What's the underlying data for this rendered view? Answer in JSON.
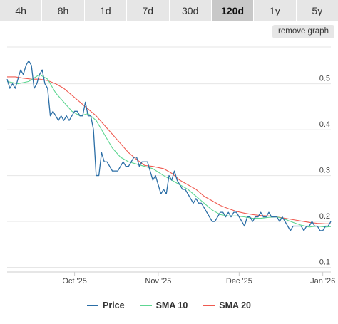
{
  "tabs": [
    {
      "label": "4h",
      "active": false
    },
    {
      "label": "8h",
      "active": false
    },
    {
      "label": "1d",
      "active": false
    },
    {
      "label": "7d",
      "active": false
    },
    {
      "label": "30d",
      "active": false
    },
    {
      "label": "120d",
      "active": true
    },
    {
      "label": "1y",
      "active": false
    },
    {
      "label": "5y",
      "active": false
    }
  ],
  "remove_graph_label": "remove graph",
  "colors": {
    "price": "#2b6ea6",
    "sma10": "#5ed692",
    "sma20": "#ef5a50"
  },
  "chart_data": {
    "type": "line",
    "x_domain": [
      "2025-09-06",
      "2026-01-04"
    ],
    "ylim": [
      0.09,
      0.58
    ],
    "y_ticks": [
      {
        "value": 0.1,
        "label": "0.1"
      },
      {
        "value": 0.2,
        "label": "0.2"
      },
      {
        "value": 0.3,
        "label": "0.3"
      },
      {
        "value": 0.4,
        "label": "0.4"
      },
      {
        "value": 0.5,
        "label": "0.5"
      }
    ],
    "x_ticks": [
      {
        "date": "2025-10-01",
        "label": "Oct '25"
      },
      {
        "date": "2025-11-01",
        "label": "Nov '25"
      },
      {
        "date": "2025-12-01",
        "label": "Dec '25"
      },
      {
        "date": "2026-01-01",
        "label": "Jan '26"
      }
    ],
    "grid": true,
    "legend": "bottom",
    "series": [
      {
        "name": "Price",
        "points": [
          [
            "2025-09-06",
            0.51
          ],
          [
            "2025-09-07",
            0.49
          ],
          [
            "2025-09-08",
            0.5
          ],
          [
            "2025-09-09",
            0.49
          ],
          [
            "2025-09-10",
            0.51
          ],
          [
            "2025-09-11",
            0.53
          ],
          [
            "2025-09-12",
            0.52
          ],
          [
            "2025-09-13",
            0.54
          ],
          [
            "2025-09-14",
            0.55
          ],
          [
            "2025-09-15",
            0.54
          ],
          [
            "2025-09-16",
            0.49
          ],
          [
            "2025-09-17",
            0.5
          ],
          [
            "2025-09-18",
            0.52
          ],
          [
            "2025-09-19",
            0.53
          ],
          [
            "2025-09-20",
            0.5
          ],
          [
            "2025-09-21",
            0.49
          ],
          [
            "2025-09-22",
            0.43
          ],
          [
            "2025-09-23",
            0.44
          ],
          [
            "2025-09-24",
            0.43
          ],
          [
            "2025-09-25",
            0.42
          ],
          [
            "2025-09-26",
            0.43
          ],
          [
            "2025-09-27",
            0.42
          ],
          [
            "2025-09-28",
            0.43
          ],
          [
            "2025-09-29",
            0.42
          ],
          [
            "2025-09-30",
            0.43
          ],
          [
            "2025-10-01",
            0.44
          ],
          [
            "2025-10-02",
            0.44
          ],
          [
            "2025-10-03",
            0.43
          ],
          [
            "2025-10-04",
            0.43
          ],
          [
            "2025-10-05",
            0.46
          ],
          [
            "2025-10-06",
            0.43
          ],
          [
            "2025-10-07",
            0.43
          ],
          [
            "2025-10-08",
            0.4
          ],
          [
            "2025-10-09",
            0.3
          ],
          [
            "2025-10-10",
            0.3
          ],
          [
            "2025-10-11",
            0.35
          ],
          [
            "2025-10-12",
            0.33
          ],
          [
            "2025-10-13",
            0.33
          ],
          [
            "2025-10-14",
            0.32
          ],
          [
            "2025-10-15",
            0.31
          ],
          [
            "2025-10-16",
            0.31
          ],
          [
            "2025-10-17",
            0.31
          ],
          [
            "2025-10-18",
            0.32
          ],
          [
            "2025-10-19",
            0.33
          ],
          [
            "2025-10-20",
            0.32
          ],
          [
            "2025-10-21",
            0.32
          ],
          [
            "2025-10-22",
            0.33
          ],
          [
            "2025-10-23",
            0.34
          ],
          [
            "2025-10-24",
            0.34
          ],
          [
            "2025-10-25",
            0.32
          ],
          [
            "2025-10-26",
            0.33
          ],
          [
            "2025-10-27",
            0.33
          ],
          [
            "2025-10-28",
            0.33
          ],
          [
            "2025-10-29",
            0.31
          ],
          [
            "2025-10-30",
            0.29
          ],
          [
            "2025-10-31",
            0.3
          ],
          [
            "2025-11-01",
            0.28
          ],
          [
            "2025-11-02",
            0.26
          ],
          [
            "2025-11-03",
            0.27
          ],
          [
            "2025-11-04",
            0.26
          ],
          [
            "2025-11-05",
            0.3
          ],
          [
            "2025-11-06",
            0.29
          ],
          [
            "2025-11-07",
            0.31
          ],
          [
            "2025-11-08",
            0.29
          ],
          [
            "2025-11-09",
            0.28
          ],
          [
            "2025-11-10",
            0.27
          ],
          [
            "2025-11-11",
            0.27
          ],
          [
            "2025-11-12",
            0.26
          ],
          [
            "2025-11-13",
            0.25
          ],
          [
            "2025-11-14",
            0.24
          ],
          [
            "2025-11-15",
            0.25
          ],
          [
            "2025-11-16",
            0.24
          ],
          [
            "2025-11-17",
            0.24
          ],
          [
            "2025-11-18",
            0.23
          ],
          [
            "2025-11-19",
            0.22
          ],
          [
            "2025-11-20",
            0.21
          ],
          [
            "2025-11-21",
            0.2
          ],
          [
            "2025-11-22",
            0.2
          ],
          [
            "2025-11-23",
            0.21
          ],
          [
            "2025-11-24",
            0.22
          ],
          [
            "2025-11-25",
            0.22
          ],
          [
            "2025-11-26",
            0.21
          ],
          [
            "2025-11-27",
            0.22
          ],
          [
            "2025-11-28",
            0.21
          ],
          [
            "2025-11-29",
            0.22
          ],
          [
            "2025-11-30",
            0.22
          ],
          [
            "2025-12-01",
            0.21
          ],
          [
            "2025-12-02",
            0.2
          ],
          [
            "2025-12-03",
            0.19
          ],
          [
            "2025-12-04",
            0.21
          ],
          [
            "2025-12-05",
            0.21
          ],
          [
            "2025-12-06",
            0.2
          ],
          [
            "2025-12-07",
            0.21
          ],
          [
            "2025-12-08",
            0.21
          ],
          [
            "2025-12-09",
            0.22
          ],
          [
            "2025-12-10",
            0.21
          ],
          [
            "2025-12-11",
            0.21
          ],
          [
            "2025-12-12",
            0.22
          ],
          [
            "2025-12-13",
            0.21
          ],
          [
            "2025-12-14",
            0.21
          ],
          [
            "2025-12-15",
            0.21
          ],
          [
            "2025-12-16",
            0.2
          ],
          [
            "2025-12-17",
            0.21
          ],
          [
            "2025-12-18",
            0.2
          ],
          [
            "2025-12-19",
            0.19
          ],
          [
            "2025-12-20",
            0.18
          ],
          [
            "2025-12-21",
            0.19
          ],
          [
            "2025-12-22",
            0.19
          ],
          [
            "2025-12-23",
            0.19
          ],
          [
            "2025-12-24",
            0.19
          ],
          [
            "2025-12-25",
            0.18
          ],
          [
            "2025-12-26",
            0.19
          ],
          [
            "2025-12-27",
            0.19
          ],
          [
            "2025-12-28",
            0.2
          ],
          [
            "2025-12-29",
            0.19
          ],
          [
            "2025-12-30",
            0.19
          ],
          [
            "2025-12-31",
            0.18
          ],
          [
            "2026-01-01",
            0.18
          ],
          [
            "2026-01-02",
            0.19
          ],
          [
            "2026-01-03",
            0.19
          ],
          [
            "2026-01-04",
            0.2
          ]
        ]
      },
      {
        "name": "SMA 10",
        "points": [
          [
            "2025-09-06",
            0.505
          ],
          [
            "2025-09-10",
            0.5
          ],
          [
            "2025-09-14",
            0.505
          ],
          [
            "2025-09-18",
            0.52
          ],
          [
            "2025-09-21",
            0.51
          ],
          [
            "2025-09-24",
            0.48
          ],
          [
            "2025-09-27",
            0.46
          ],
          [
            "2025-09-30",
            0.44
          ],
          [
            "2025-10-03",
            0.43
          ],
          [
            "2025-10-06",
            0.435
          ],
          [
            "2025-10-09",
            0.42
          ],
          [
            "2025-10-12",
            0.39
          ],
          [
            "2025-10-15",
            0.36
          ],
          [
            "2025-10-18",
            0.34
          ],
          [
            "2025-10-21",
            0.33
          ],
          [
            "2025-10-24",
            0.325
          ],
          [
            "2025-10-27",
            0.32
          ],
          [
            "2025-10-30",
            0.315
          ],
          [
            "2025-11-03",
            0.3
          ],
          [
            "2025-11-06",
            0.29
          ],
          [
            "2025-11-09",
            0.28
          ],
          [
            "2025-11-12",
            0.27
          ],
          [
            "2025-11-15",
            0.255
          ],
          [
            "2025-11-18",
            0.24
          ],
          [
            "2025-11-21",
            0.225
          ],
          [
            "2025-11-24",
            0.215
          ],
          [
            "2025-11-27",
            0.212
          ],
          [
            "2025-11-30",
            0.212
          ],
          [
            "2025-12-03",
            0.21
          ],
          [
            "2025-12-06",
            0.207
          ],
          [
            "2025-12-09",
            0.207
          ],
          [
            "2025-12-12",
            0.209
          ],
          [
            "2025-12-15",
            0.21
          ],
          [
            "2025-12-18",
            0.205
          ],
          [
            "2025-12-21",
            0.198
          ],
          [
            "2025-12-24",
            0.192
          ],
          [
            "2025-12-27",
            0.188
          ],
          [
            "2025-12-30",
            0.19
          ],
          [
            "2026-01-02",
            0.188
          ],
          [
            "2026-01-04",
            0.189
          ]
        ]
      },
      {
        "name": "SMA 20",
        "points": [
          [
            "2025-09-06",
            0.515
          ],
          [
            "2025-09-09",
            0.515
          ],
          [
            "2025-09-12",
            0.512
          ],
          [
            "2025-09-15",
            0.51
          ],
          [
            "2025-09-18",
            0.51
          ],
          [
            "2025-09-21",
            0.507
          ],
          [
            "2025-09-24",
            0.5
          ],
          [
            "2025-09-27",
            0.49
          ],
          [
            "2025-09-30",
            0.475
          ],
          [
            "2025-10-03",
            0.46
          ],
          [
            "2025-10-06",
            0.445
          ],
          [
            "2025-10-09",
            0.43
          ],
          [
            "2025-10-12",
            0.41
          ],
          [
            "2025-10-15",
            0.39
          ],
          [
            "2025-10-18",
            0.37
          ],
          [
            "2025-10-21",
            0.35
          ],
          [
            "2025-10-24",
            0.335
          ],
          [
            "2025-10-27",
            0.322
          ],
          [
            "2025-10-30",
            0.32
          ],
          [
            "2025-11-03",
            0.315
          ],
          [
            "2025-11-06",
            0.305
          ],
          [
            "2025-11-09",
            0.29
          ],
          [
            "2025-11-12",
            0.28
          ],
          [
            "2025-11-15",
            0.27
          ],
          [
            "2025-11-18",
            0.255
          ],
          [
            "2025-11-21",
            0.245
          ],
          [
            "2025-11-24",
            0.235
          ],
          [
            "2025-11-27",
            0.228
          ],
          [
            "2025-11-30",
            0.222
          ],
          [
            "2025-12-03",
            0.218
          ],
          [
            "2025-12-06",
            0.215
          ],
          [
            "2025-12-09",
            0.213
          ],
          [
            "2025-12-12",
            0.212
          ],
          [
            "2025-12-15",
            0.21
          ],
          [
            "2025-12-18",
            0.207
          ],
          [
            "2025-12-21",
            0.204
          ],
          [
            "2025-12-24",
            0.201
          ],
          [
            "2025-12-27",
            0.198
          ],
          [
            "2025-12-30",
            0.196
          ],
          [
            "2026-01-02",
            0.195
          ],
          [
            "2026-01-04",
            0.195
          ]
        ]
      }
    ]
  }
}
